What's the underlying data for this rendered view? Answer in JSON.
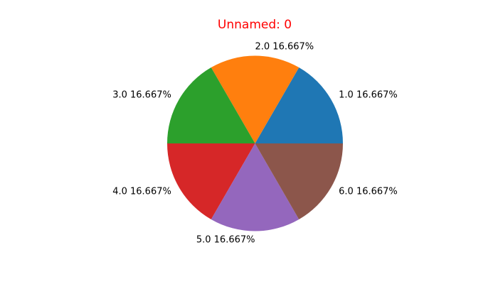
{
  "chart_data": {
    "type": "pie",
    "title": "Unnamed: 0",
    "title_color": "#ff0000",
    "start_angle_deg": 0,
    "direction": "counterclockwise",
    "slices": [
      {
        "label": "1.0",
        "value": 1,
        "pct_text": "16.667%",
        "color": "#1f77b4"
      },
      {
        "label": "2.0",
        "value": 1,
        "pct_text": "16.667%",
        "color": "#ff7f0e"
      },
      {
        "label": "3.0",
        "value": 1,
        "pct_text": "16.667%",
        "color": "#2ca02c"
      },
      {
        "label": "4.0",
        "value": 1,
        "pct_text": "16.667%",
        "color": "#d62728"
      },
      {
        "label": "5.0",
        "value": 1,
        "pct_text": "16.667%",
        "color": "#9467bd"
      },
      {
        "label": "6.0",
        "value": 1,
        "pct_text": "16.667%",
        "color": "#8c564b"
      }
    ]
  }
}
